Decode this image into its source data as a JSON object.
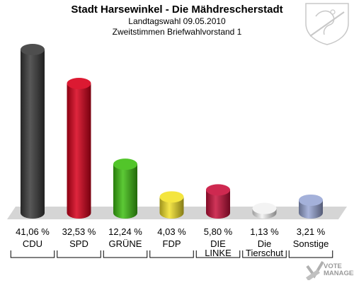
{
  "header": {
    "title": "Stadt Harsewinkel - Die Mähdrescherstadt",
    "subtitle_1": "Landtagswahl 09.05.2010",
    "subtitle_2": "Zweitstimmen Briefwahlvorstand 1"
  },
  "watermark": {
    "line1": "VOTE",
    "line2": "MANAGER"
  },
  "chart_data": {
    "type": "bar",
    "title": "Stadt Harsewinkel - Die Mähdrescherstadt",
    "subtitle": "Landtagswahl 09.05.2010 / Zweitstimmen Briefwahlvorstand 1",
    "categories": [
      [
        "CDU"
      ],
      [
        "SPD"
      ],
      [
        "GRÜNE"
      ],
      [
        "FDP"
      ],
      [
        "DIE",
        "LINKE"
      ],
      [
        "Die",
        "Tierschut"
      ],
      [
        "Sonstige"
      ]
    ],
    "values": [
      41.06,
      32.53,
      12.24,
      4.03,
      5.8,
      1.13,
      3.21
    ],
    "value_labels": [
      "41,06 %",
      "32,53 %",
      "12,24 %",
      "4,03 %",
      "5,80 %",
      "1,13 %",
      "3,21 %"
    ],
    "colors": [
      "#3a3a3a",
      "#d8001b",
      "#3fbf12",
      "#f3e22a",
      "#c8113c",
      "#f2f2f2",
      "#9aa8d6"
    ],
    "ylim": [
      0,
      41.06
    ],
    "grid": false,
    "legend": "none"
  }
}
